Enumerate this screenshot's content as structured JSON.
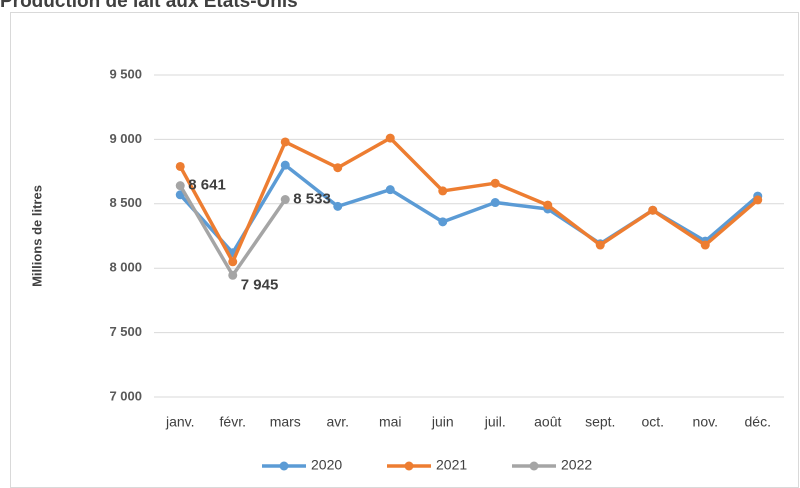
{
  "chart_data": {
    "type": "line",
    "title": "Production de lait aux États-Unis",
    "y_label": "Millions de litres",
    "categories": [
      "janv.",
      "févr.",
      "mars",
      "avr.",
      "mai",
      "juin",
      "juil.",
      "août",
      "sept.",
      "oct.",
      "nov.",
      "déc."
    ],
    "series": [
      {
        "name": "2020",
        "color": "#5b9bd5",
        "values": [
          8570,
          8120,
          8800,
          8480,
          8610,
          8360,
          8510,
          8460,
          8190,
          8450,
          8210,
          8560
        ]
      },
      {
        "name": "2021",
        "color": "#ed7d31",
        "values": [
          8790,
          8050,
          8980,
          8780,
          9010,
          8600,
          8660,
          8490,
          8180,
          8450,
          8180,
          8530
        ]
      },
      {
        "name": "2022",
        "color": "#a5a5a5",
        "values": [
          8641,
          7945,
          8533,
          null,
          null,
          null,
          null,
          null,
          null,
          null,
          null,
          null
        ],
        "value_labels": [
          "8 641",
          "7 945",
          "8 533",
          null,
          null,
          null,
          null,
          null,
          null,
          null,
          null,
          null
        ]
      }
    ],
    "ylim": [
      7000,
      9500
    ],
    "yticks": [
      {
        "value": 7000,
        "label": "7 000"
      },
      {
        "value": 7500,
        "label": "7 500"
      },
      {
        "value": 8000,
        "label": "8 000"
      },
      {
        "value": 8500,
        "label": "8 500"
      },
      {
        "value": 9000,
        "label": "9 000"
      },
      {
        "value": 9500,
        "label": "9 500"
      }
    ],
    "grid": true,
    "legend": "bottom"
  }
}
